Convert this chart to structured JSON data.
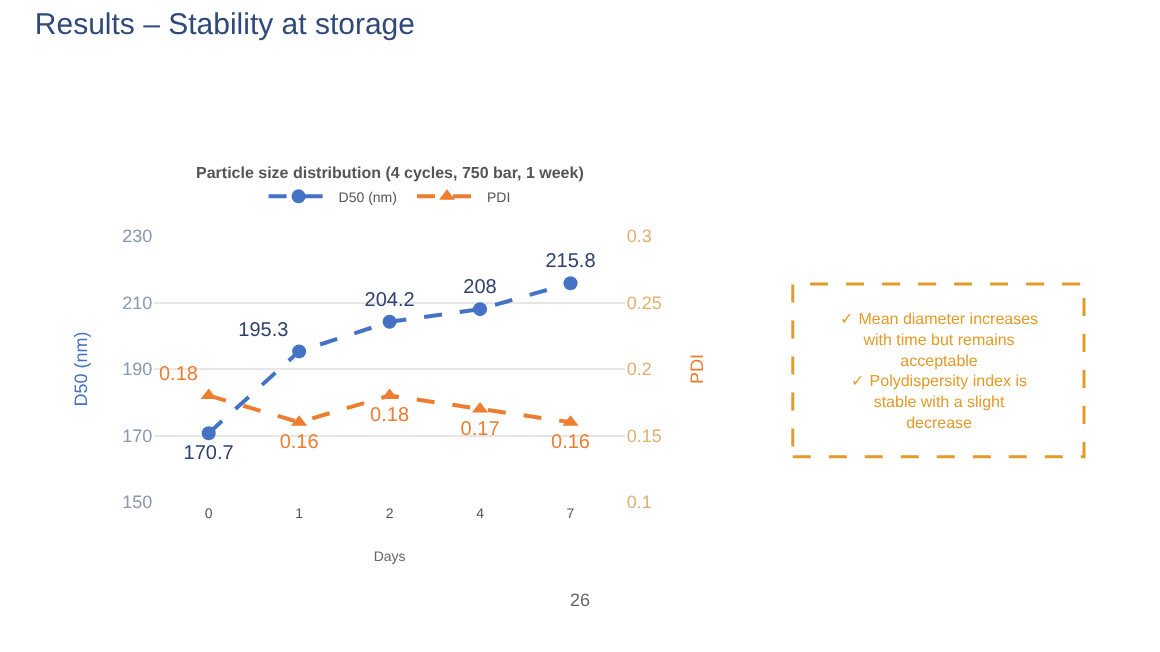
{
  "chart_data": {
    "type": "line",
    "title": "Results – Stability at storage",
    "subtitle": "Particle size distribution (4 cycles, 750 bar, 1 week)",
    "xlabel": "Days",
    "ylabel": "D50 (nm)",
    "y2label": "PDI",
    "categories": [
      "0",
      "1",
      "2",
      "4",
      "7"
    ],
    "series": [
      {
        "name": "D50 (nm)",
        "color": "#4472c4",
        "values": [
          170.7,
          195.3,
          204.2,
          208,
          215.8
        ],
        "marker": "circle"
      },
      {
        "name": "PDI",
        "color": "#ed7d31",
        "values": [
          0.18,
          0.16,
          0.18,
          0.17,
          0.16
        ],
        "marker": "triangle",
        "axis": "y2"
      }
    ],
    "ylim": [
      150,
      230
    ],
    "yticks": [
      150,
      170,
      190,
      210,
      230
    ],
    "y2lim": [
      0.1,
      0.3
    ],
    "y2ticks": [
      0.1,
      0.15,
      0.2,
      0.25,
      0.3
    ],
    "data_labels": true,
    "grid": "y",
    "legend": "top",
    "line_style": "dashed",
    "annotations": [
      "✓ Mean diameter increases\nwith time but remains\nacceptable\n✓ Polydispersity index is\nstable with a slight\ndecrease",
      "26"
    ]
  }
}
